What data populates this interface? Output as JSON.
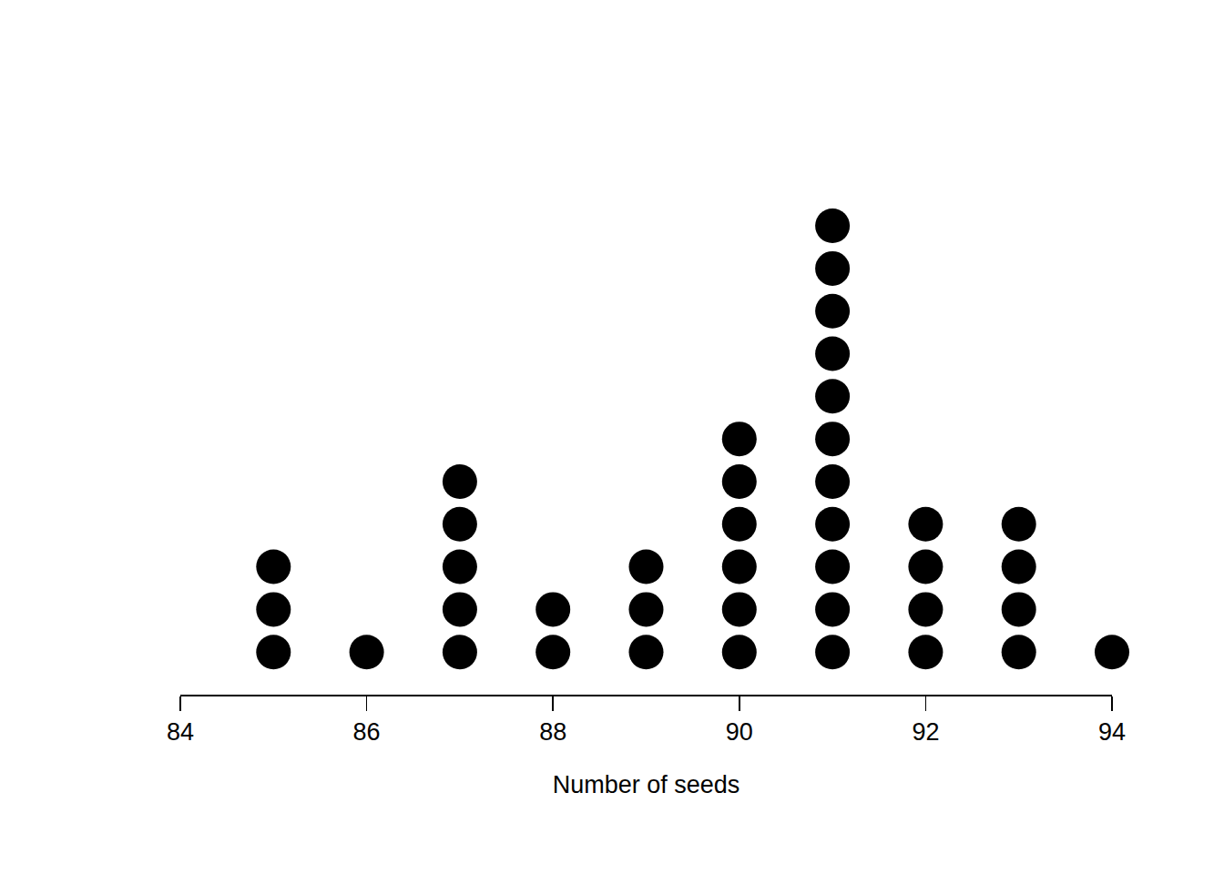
{
  "chart_data": {
    "type": "dot",
    "x_label": "Number of seeds",
    "x": [
      85,
      86,
      87,
      88,
      89,
      90,
      91,
      92,
      93,
      94
    ],
    "values": [
      3,
      1,
      5,
      2,
      3,
      6,
      11,
      4,
      4,
      1
    ],
    "color": "#000000",
    "marker": "circle",
    "xlim": [
      84,
      94
    ],
    "xticks": [
      84,
      86,
      88,
      90,
      92,
      94
    ],
    "ylim": [
      0,
      16
    ],
    "grid": false,
    "tick_labels": "x"
  }
}
